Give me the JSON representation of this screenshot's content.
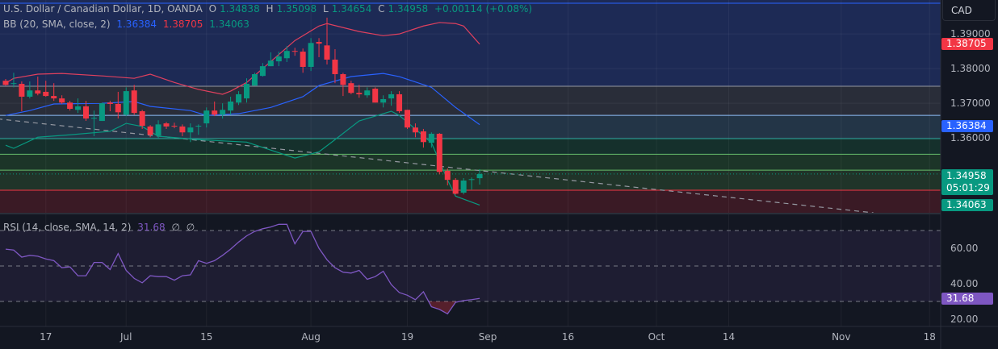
{
  "header": {
    "symbol": "U.S. Dollar / Canadian Dollar, 1D, OANDA",
    "o_label": "O",
    "o": "1.34838",
    "h_label": "H",
    "h": "1.35098",
    "l_label": "L",
    "l": "1.34654",
    "c_label": "C",
    "c": "1.34958",
    "change": "+0.00114 (+0.08%)"
  },
  "bb_legend": {
    "label": "BB (20, SMA, close, 2)",
    "basis": "1.36384",
    "upper": "1.38705",
    "lower": "1.34063"
  },
  "rsi_legend": {
    "label": "RSI (14, close, SMA, 14, 2)",
    "value": "31.68",
    "ma": "∅",
    "extra": "∅"
  },
  "currency": "CAD",
  "badges": {
    "upper": "1.38705",
    "basis": "1.36384",
    "last": "1.34958",
    "countdown": "05:01:29",
    "lower": "1.34063",
    "rsi": "31.68"
  },
  "colors": {
    "up": "#089981",
    "down": "#f23645",
    "bb_upper": "#e0405e",
    "bb_basis": "#2962ff",
    "bb_lower": "#089981",
    "rsi": "#7e57c2"
  },
  "chart_data": [
    {
      "type": "candlestick",
      "title": "U.S. Dollar / Canadian Dollar, 1D, OANDA",
      "ylim": [
        1.3384,
        1.3998
      ],
      "y_ticks": [
        "1.39000",
        "1.38000",
        "1.37000",
        "1.36000"
      ],
      "x_ticks": [
        {
          "label": "17",
          "date": "2024-06-17"
        },
        {
          "label": "Jul",
          "date": "2024-07-01"
        },
        {
          "label": "15",
          "date": "2024-07-15"
        },
        {
          "label": "Aug",
          "date": "2024-08-01"
        },
        {
          "label": "19",
          "date": "2024-08-19"
        },
        {
          "label": "Sep",
          "date": "2024-09-02"
        },
        {
          "label": "16",
          "date": "2024-09-16"
        },
        {
          "label": "Oct",
          "date": "2024-10-01"
        },
        {
          "label": "14",
          "date": "2024-10-14"
        },
        {
          "label": "Nov",
          "date": "2024-11-01"
        },
        {
          "label": "18",
          "date": "2024-11-18"
        }
      ],
      "columns": [
        "date",
        "open",
        "high",
        "low",
        "close"
      ],
      "candles": [
        [
          "2024-06-10",
          1.3765,
          1.377,
          1.3751,
          1.3753
        ],
        [
          "2024-06-11",
          1.3758,
          1.3788,
          1.3746,
          1.3758
        ],
        [
          "2024-06-12",
          1.3756,
          1.3763,
          1.3677,
          1.3719
        ],
        [
          "2024-06-13",
          1.3719,
          1.3763,
          1.3714,
          1.3737
        ],
        [
          "2024-06-14",
          1.3737,
          1.3777,
          1.3723,
          1.3728
        ],
        [
          "2024-06-17",
          1.3733,
          1.3765,
          1.3719,
          1.3721
        ],
        [
          "2024-06-18",
          1.3721,
          1.3758,
          1.3707,
          1.3714
        ],
        [
          "2024-06-19",
          1.3714,
          1.3723,
          1.3698,
          1.3702
        ],
        [
          "2024-06-20",
          1.3702,
          1.3707,
          1.3679,
          1.3684
        ],
        [
          "2024-06-21",
          1.3681,
          1.3714,
          1.3672,
          1.3691
        ],
        [
          "2024-06-24",
          1.3691,
          1.3707,
          1.3649,
          1.3656
        ],
        [
          "2024-06-25",
          1.3656,
          1.3679,
          1.3605,
          1.3658
        ],
        [
          "2024-06-26",
          1.3649,
          1.3702,
          1.3649,
          1.37
        ],
        [
          "2024-06-27",
          1.3702,
          1.3707,
          1.3677,
          1.3698
        ],
        [
          "2024-06-28",
          1.3698,
          1.3733,
          1.3656,
          1.3674
        ],
        [
          "2024-07-01",
          1.3667,
          1.3746,
          1.3663,
          1.3735
        ],
        [
          "2024-07-02",
          1.3737,
          1.3753,
          1.3667,
          1.3672
        ],
        [
          "2024-07-03",
          1.3677,
          1.3681,
          1.3626,
          1.3635
        ],
        [
          "2024-07-04",
          1.3633,
          1.3637,
          1.3602,
          1.3609
        ],
        [
          "2024-07-05",
          1.3607,
          1.3651,
          1.3598,
          1.3639
        ],
        [
          "2024-07-08",
          1.3642,
          1.3646,
          1.3626,
          1.3633
        ],
        [
          "2024-07-09",
          1.3635,
          1.3644,
          1.3628,
          1.3633
        ],
        [
          "2024-07-10",
          1.3633,
          1.3639,
          1.3605,
          1.3616
        ],
        [
          "2024-07-11",
          1.3616,
          1.3642,
          1.3588,
          1.363
        ],
        [
          "2024-07-12",
          1.3633,
          1.3639,
          1.3609,
          1.3635
        ],
        [
          "2024-07-15",
          1.3642,
          1.3688,
          1.363,
          1.3679
        ],
        [
          "2024-07-16",
          1.3679,
          1.3705,
          1.3663,
          1.3667
        ],
        [
          "2024-07-17",
          1.3667,
          1.37,
          1.3656,
          1.3681
        ],
        [
          "2024-07-18",
          1.3679,
          1.3719,
          1.3667,
          1.3705
        ],
        [
          "2024-07-19",
          1.3702,
          1.3735,
          1.3695,
          1.3726
        ],
        [
          "2024-07-22",
          1.3714,
          1.3772,
          1.3702,
          1.3756
        ],
        [
          "2024-07-23",
          1.3751,
          1.3788,
          1.3751,
          1.3784
        ],
        [
          "2024-07-24",
          1.3779,
          1.3816,
          1.3777,
          1.3807
        ],
        [
          "2024-07-25",
          1.3807,
          1.3847,
          1.3807,
          1.3823
        ],
        [
          "2024-07-26",
          1.3821,
          1.3849,
          1.3807,
          1.3835
        ],
        [
          "2024-07-29",
          1.383,
          1.3865,
          1.3819,
          1.3851
        ],
        [
          "2024-07-30",
          1.3851,
          1.386,
          1.3837,
          1.3849
        ],
        [
          "2024-07-31",
          1.3849,
          1.3858,
          1.3788,
          1.3805
        ],
        [
          "2024-08-01",
          1.3805,
          1.3888,
          1.3793,
          1.3874
        ],
        [
          "2024-08-02",
          1.3877,
          1.3888,
          1.3833,
          1.3872
        ],
        [
          "2024-08-05",
          1.3867,
          1.3947,
          1.3812,
          1.3826
        ],
        [
          "2024-08-06",
          1.3826,
          1.3856,
          1.3758,
          1.3784
        ],
        [
          "2024-08-07",
          1.3784,
          1.3788,
          1.3721,
          1.3753
        ],
        [
          "2024-08-08",
          1.3758,
          1.3765,
          1.3726,
          1.373
        ],
        [
          "2024-08-09",
          1.373,
          1.3753,
          1.3716,
          1.3726
        ],
        [
          "2024-08-12",
          1.3723,
          1.3746,
          1.3716,
          1.3737
        ],
        [
          "2024-08-13",
          1.3742,
          1.3746,
          1.3702,
          1.3702
        ],
        [
          "2024-08-14",
          1.3702,
          1.3723,
          1.3688,
          1.3712
        ],
        [
          "2024-08-15",
          1.3714,
          1.3735,
          1.3693,
          1.3726
        ],
        [
          "2024-08-16",
          1.3726,
          1.3735,
          1.3672,
          1.3677
        ],
        [
          "2024-08-19",
          1.3681,
          1.3681,
          1.3626,
          1.363
        ],
        [
          "2024-08-20",
          1.363,
          1.3642,
          1.3602,
          1.3616
        ],
        [
          "2024-08-21",
          1.3619,
          1.3626,
          1.3572,
          1.3588
        ],
        [
          "2024-08-22",
          1.3586,
          1.3616,
          1.3572,
          1.3612
        ],
        [
          "2024-08-23",
          1.3612,
          1.3614,
          1.3495,
          1.3502
        ],
        [
          "2024-08-26",
          1.3505,
          1.3512,
          1.3463,
          1.3479
        ],
        [
          "2024-08-27",
          1.3479,
          1.3484,
          1.3437,
          1.3439
        ],
        [
          "2024-08-28",
          1.3442,
          1.3484,
          1.3437,
          1.3477
        ],
        [
          "2024-08-29",
          1.3479,
          1.3486,
          1.3451,
          1.3481
        ],
        [
          "2024-08-30",
          1.34838,
          1.35098,
          1.34654,
          1.34958
        ]
      ],
      "bollinger": {
        "upper": [
          [
            "2024-06-10",
            1.3758
          ],
          [
            "2024-06-11",
            1.3772
          ],
          [
            "2024-06-14",
            1.3784
          ],
          [
            "2024-06-19",
            1.3786
          ],
          [
            "2024-06-26",
            1.3779
          ],
          [
            "2024-07-02",
            1.3772
          ],
          [
            "2024-07-04",
            1.3784
          ],
          [
            "2024-07-09",
            1.376
          ],
          [
            "2024-07-12",
            1.374
          ],
          [
            "2024-07-17",
            1.3726
          ],
          [
            "2024-07-18",
            1.3735
          ],
          [
            "2024-07-22",
            1.376
          ],
          [
            "2024-07-30",
            1.3881
          ],
          [
            "2024-08-02",
            1.3923
          ],
          [
            "2024-08-05",
            1.393
          ],
          [
            "2024-08-09",
            1.3907
          ],
          [
            "2024-08-14",
            1.3895
          ],
          [
            "2024-08-16",
            1.39
          ],
          [
            "2024-08-21",
            1.3923
          ],
          [
            "2024-08-23",
            1.3933
          ],
          [
            "2024-08-27",
            1.393
          ],
          [
            "2024-08-28",
            1.3923
          ],
          [
            "2024-08-30",
            1.38705
          ]
        ],
        "basis": [
          [
            "2024-06-10",
            1.3665
          ],
          [
            "2024-06-13",
            1.3679
          ],
          [
            "2024-06-18",
            1.3698
          ],
          [
            "2024-06-26",
            1.37
          ],
          [
            "2024-07-02",
            1.3705
          ],
          [
            "2024-07-04",
            1.3691
          ],
          [
            "2024-07-11",
            1.3679
          ],
          [
            "2024-07-15",
            1.3665
          ],
          [
            "2024-07-19",
            1.367
          ],
          [
            "2024-07-25",
            1.3688
          ],
          [
            "2024-07-31",
            1.3719
          ],
          [
            "2024-08-02",
            1.3751
          ],
          [
            "2024-08-08",
            1.3777
          ],
          [
            "2024-08-14",
            1.3786
          ],
          [
            "2024-08-16",
            1.3777
          ],
          [
            "2024-08-22",
            1.3746
          ],
          [
            "2024-08-27",
            1.3688
          ],
          [
            "2024-08-30",
            1.36384
          ]
        ],
        "lower": [
          [
            "2024-06-10",
            1.3579
          ],
          [
            "2024-06-11",
            1.357
          ],
          [
            "2024-06-14",
            1.3602
          ],
          [
            "2024-06-20",
            1.3609
          ],
          [
            "2024-06-27",
            1.3619
          ],
          [
            "2024-07-01",
            1.3642
          ],
          [
            "2024-07-03",
            1.3633
          ],
          [
            "2024-07-05",
            1.3605
          ],
          [
            "2024-07-12",
            1.3595
          ],
          [
            "2024-07-22",
            1.3588
          ],
          [
            "2024-07-30",
            1.3542
          ],
          [
            "2024-08-02",
            1.356
          ],
          [
            "2024-08-06",
            1.3595
          ],
          [
            "2024-08-09",
            1.3649
          ],
          [
            "2024-08-15",
            1.3677
          ],
          [
            "2024-08-16",
            1.3665
          ],
          [
            "2024-08-22",
            1.3586
          ],
          [
            "2024-08-26",
            1.3479
          ],
          [
            "2024-08-27",
            1.3432
          ],
          [
            "2024-08-30",
            1.34063
          ]
        ]
      },
      "horizontal_levels": [
        {
          "price": 1.3749,
          "color": "#9598a1"
        },
        {
          "price": 1.3665,
          "color": "#90bff9"
        },
        {
          "price": 1.3598,
          "color": "#26a69a"
        },
        {
          "price": 1.3553,
          "color": "#66bb6a"
        },
        {
          "price": 1.3507,
          "color": "#66bb6a"
        },
        {
          "price": 1.3449,
          "color": "#f23645"
        }
      ],
      "zones": [
        {
          "from": 1.3749,
          "to": 1.3998,
          "color": "#1d2a55"
        },
        {
          "from": 1.3665,
          "to": 1.3749,
          "color": "#292d39"
        },
        {
          "from": 1.3598,
          "to": 1.3665,
          "color": "#233547"
        },
        {
          "from": 1.3553,
          "to": 1.3598,
          "color": "#15302c"
        },
        {
          "from": 1.3507,
          "to": 1.3553,
          "color": "#1c3528"
        },
        {
          "from": 1.3449,
          "to": 1.3507,
          "color": "#203429"
        },
        {
          "from": 1.3384,
          "to": 1.3449,
          "color": "#3a1a25"
        }
      ],
      "trendline": [
        [
          "2024-06-07",
          1.3655
        ],
        [
          "2024-11-07",
          1.3384
        ]
      ]
    },
    {
      "type": "line",
      "title": "RSI (14, close, SMA, 14, 2)",
      "ylim": [
        15.9,
        79.1
      ],
      "y_ticks": [
        "60.00",
        "40.00",
        "20.00"
      ],
      "bands": [
        70,
        50,
        30
      ],
      "values": [
        59.5,
        59,
        55,
        56,
        55.5,
        54,
        53,
        49,
        49.5,
        44.5,
        44.5,
        52,
        52,
        48,
        57,
        47.5,
        43,
        40.5,
        44.5,
        44,
        44,
        42,
        44.5,
        45,
        53,
        51.5,
        53,
        56,
        59.5,
        63.5,
        67,
        69.5,
        71,
        72,
        73.5,
        73.5,
        62.5,
        69.5,
        69.5,
        60,
        53.5,
        49,
        46.5,
        46,
        47.5,
        42.5,
        44,
        47,
        39.5,
        35,
        33.5,
        31,
        35.5,
        27,
        25.5,
        23,
        29.5,
        30.5,
        31,
        31.68
      ]
    }
  ]
}
